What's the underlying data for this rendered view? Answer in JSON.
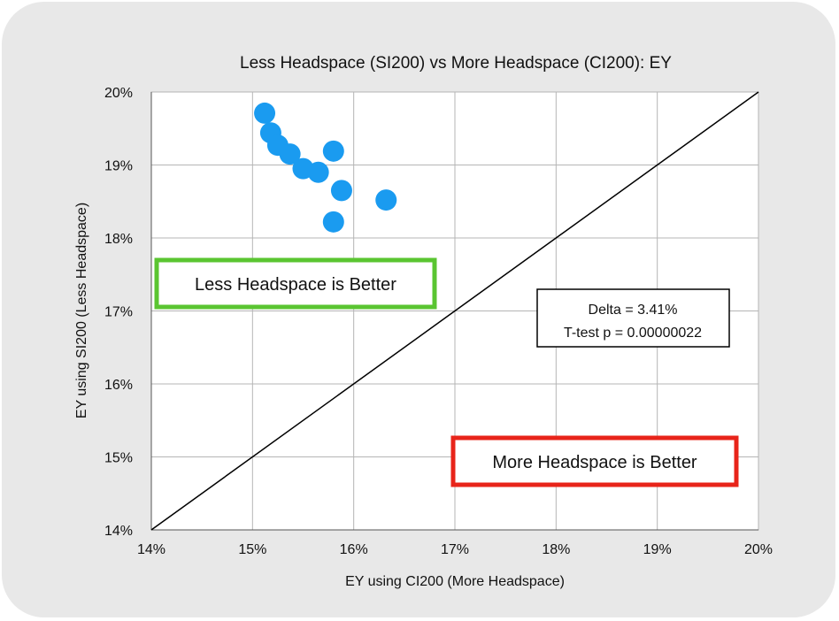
{
  "chart_data": {
    "type": "scatter",
    "title": "Less Headspace (SI200) vs More Headspace (CI200): EY",
    "xlabel": "EY using CI200 (More Headspace)",
    "ylabel": "EY using SI200 (Less Headspace)",
    "xlim": [
      14,
      20
    ],
    "ylim": [
      14,
      20
    ],
    "x_ticks": [
      "14%",
      "15%",
      "16%",
      "17%",
      "18%",
      "19%",
      "20%"
    ],
    "y_ticks": [
      "14%",
      "15%",
      "16%",
      "17%",
      "18%",
      "19%",
      "20%"
    ],
    "grid": true,
    "series": [
      {
        "color": "#1a9bf0",
        "points": [
          {
            "x": 15.12,
            "y": 19.71
          },
          {
            "x": 15.18,
            "y": 19.44
          },
          {
            "x": 15.25,
            "y": 19.27
          },
          {
            "x": 15.37,
            "y": 19.15
          },
          {
            "x": 15.5,
            "y": 18.95
          },
          {
            "x": 15.65,
            "y": 18.9
          },
          {
            "x": 15.8,
            "y": 19.19
          },
          {
            "x": 15.88,
            "y": 18.65
          },
          {
            "x": 16.32,
            "y": 18.52
          },
          {
            "x": 15.8,
            "y": 18.22
          }
        ]
      }
    ],
    "reference_line": {
      "from": [
        14,
        14
      ],
      "to": [
        20,
        20
      ],
      "color": "#000000"
    },
    "annotations": {
      "less_better": {
        "text": "Less Headspace is Better",
        "border_color": "#5ac531"
      },
      "more_better": {
        "text": "More Headspace is Better",
        "border_color": "#e8241a"
      },
      "stats": {
        "line1": "Delta = 3.41%",
        "line2": "T-test p = 0.00000022"
      }
    }
  }
}
